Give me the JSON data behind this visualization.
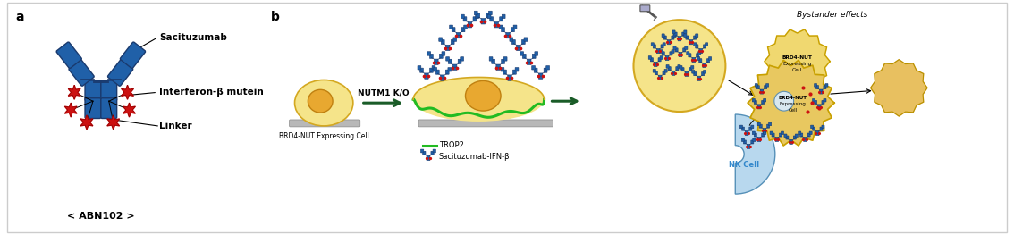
{
  "bg_color": "#ffffff",
  "border_color": "#cccccc",
  "label_a": "a",
  "label_b": "b",
  "antibody_blue": "#2060a8",
  "antibody_dark": "#1a3a6e",
  "star_red": "#cc1111",
  "cell_fill": "#f5e48a",
  "cell_nucleus": "#e8a830",
  "cell_border_yellow": "#d4a820",
  "cell_border_green": "#22bb22",
  "platform_color": "#b8b8b8",
  "arrow_color": "#1a5c28",
  "text_color": "#000000",
  "trop2_color": "#22bb22",
  "nk_blue_fill": "#b8d8ee",
  "nk_blue_edge": "#5590b8",
  "nk_blue_text": "#3388cc",
  "brd4_fill": "#f0d870",
  "brd4_edge": "#c8a000",
  "brd4_spiky_fill": "#e8c860",
  "small_cell_fill": "#e8c060",
  "small_cell_edge": "#b89000",
  "label_sacituzumab": "Sacituzumab",
  "label_interferon": "Interferon-β mutein",
  "label_linker": "Linker",
  "label_abn": "< ABN102 >",
  "label_nutm1": "NUTM1 K/O",
  "label_brd4_cell": "BRD4-NUT Expressing Cell",
  "label_trop2": "TROP2",
  "label_sacitu_ifn": "Sacituzumab-IFN-β",
  "label_bystander": "Bystander effects",
  "label_nk": "NK Cell",
  "label_brd4_expressing": "BRD4-NUT\nExpressing\nCell"
}
